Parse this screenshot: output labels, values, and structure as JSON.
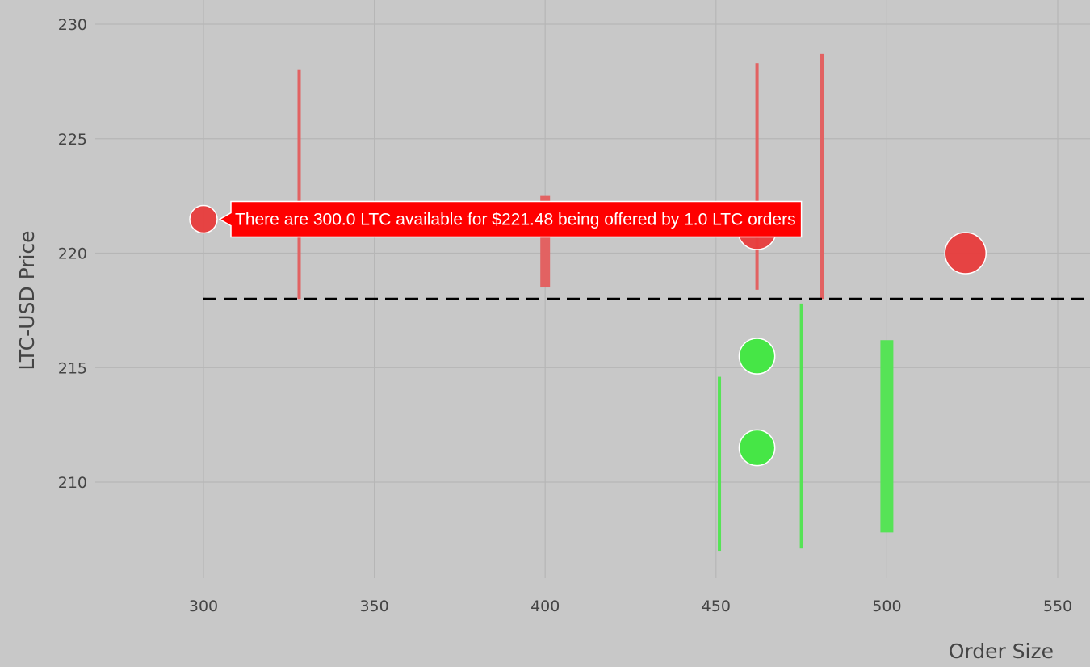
{
  "chart_data": {
    "type": "scatter",
    "title": "",
    "xlabel": "Order Size",
    "ylabel": "LTC-USD Price",
    "xlim": [
      300,
      552
    ],
    "ylim": [
      205,
      230
    ],
    "x_ticks": [
      "300",
      "350",
      "400",
      "450",
      "500",
      "550"
    ],
    "y_ticks": [
      "210",
      "215",
      "220",
      "225",
      "230"
    ],
    "grid": true,
    "colors": {
      "background": "#c8c8c8",
      "grid": "#b6b6b6",
      "ask": "#e83c3c",
      "ask_bar": "#e26262",
      "bid": "#3fe83f",
      "bid_bar": "#56e356",
      "midline": "#000000",
      "tooltip_bg": "#ff0000",
      "tooltip_text": "#ffffff"
    },
    "midline": {
      "y": 218.0,
      "style": "dashed",
      "x_start": 300
    },
    "series": [
      {
        "kind": "ask_points",
        "points": [
          {
            "x": 300,
            "y": 221.48,
            "size": 1.0
          },
          {
            "x": 462,
            "y": 221.0,
            "size": 1.4
          },
          {
            "x": 523,
            "y": 220.0,
            "size": 1.5
          }
        ]
      },
      {
        "kind": "bid_points",
        "points": [
          {
            "x": 462,
            "y": 215.5,
            "size": 1.3
          },
          {
            "x": 462,
            "y": 211.5,
            "size": 1.3
          }
        ]
      },
      {
        "kind": "ask_ranges",
        "bars": [
          {
            "x": 328,
            "y_low": 218.0,
            "y_high": 228.0,
            "weight": 1
          },
          {
            "x": 400,
            "y_low": 218.5,
            "y_high": 222.5,
            "weight": 3
          },
          {
            "x": 462,
            "y_low": 218.4,
            "y_high": 228.3,
            "weight": 1
          },
          {
            "x": 481,
            "y_low": 218.0,
            "y_high": 228.7,
            "weight": 1
          }
        ]
      },
      {
        "kind": "bid_ranges",
        "bars": [
          {
            "x": 451,
            "y_low": 207.0,
            "y_high": 214.6,
            "weight": 1
          },
          {
            "x": 475,
            "y_low": 207.1,
            "y_high": 217.8,
            "weight": 1
          },
          {
            "x": 500,
            "y_low": 207.8,
            "y_high": 216.2,
            "weight": 4
          }
        ]
      }
    ],
    "tooltip": {
      "text": "There are 300.0 LTC available for $221.48 being offered by 1.0 LTC orders",
      "anchor": {
        "x": 300,
        "y": 221.48
      }
    }
  }
}
